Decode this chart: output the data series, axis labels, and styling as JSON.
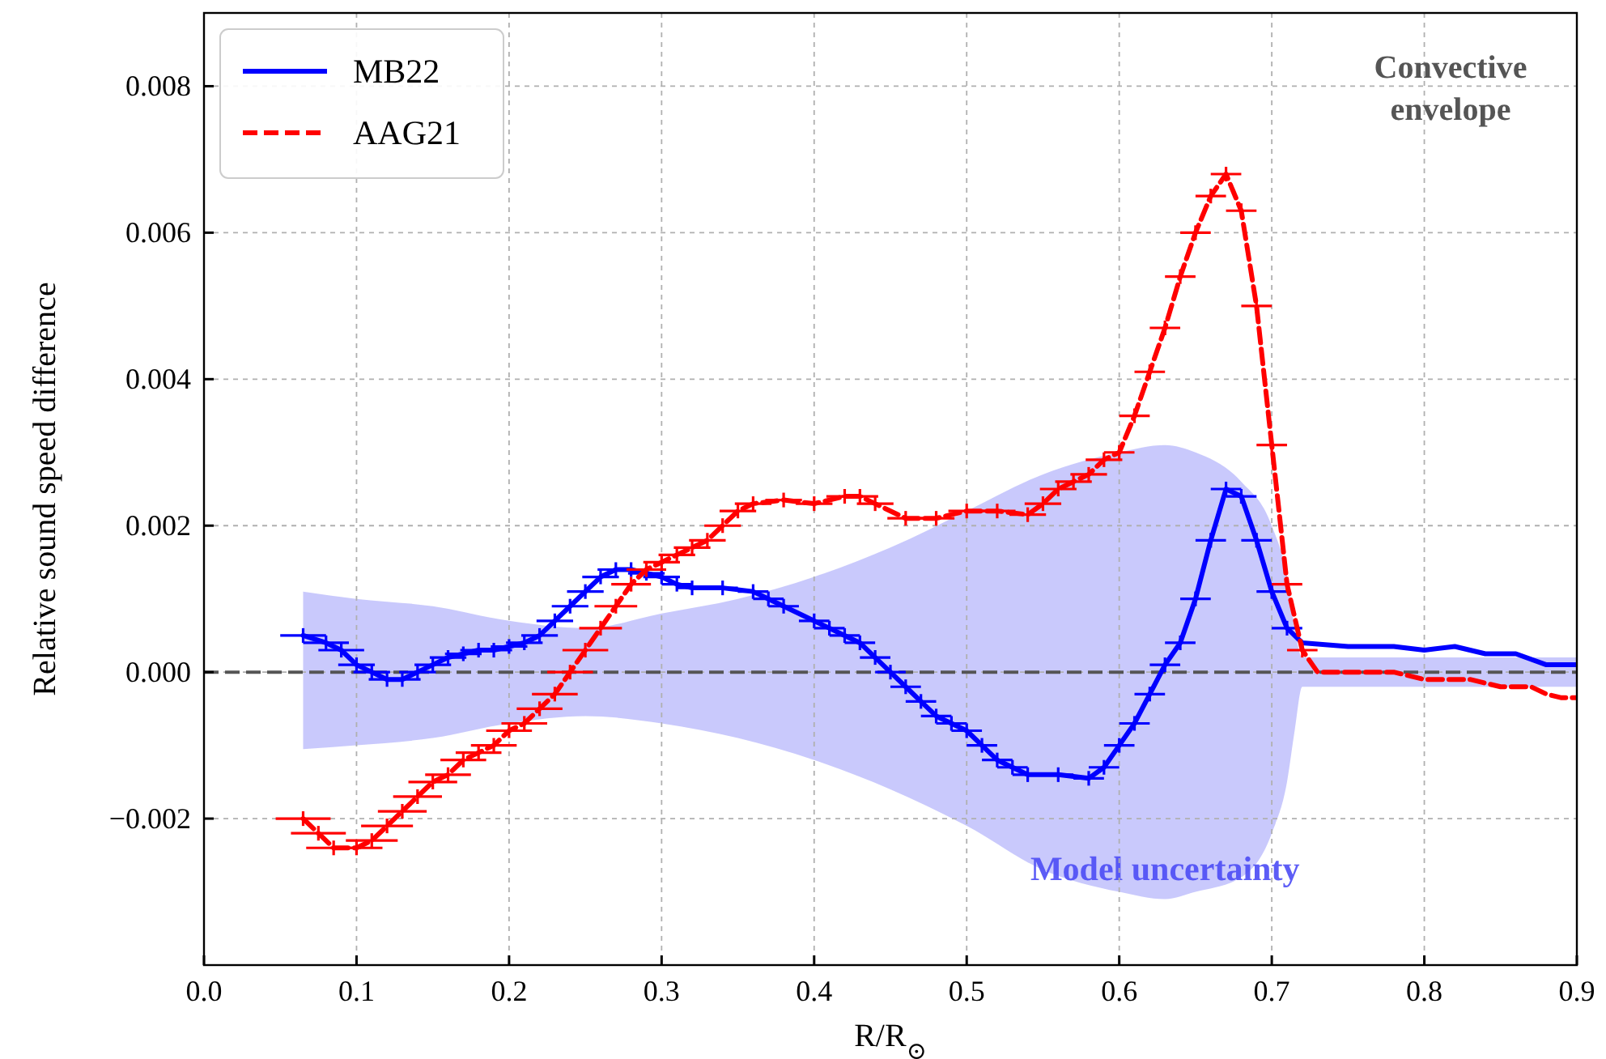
{
  "chart_data": {
    "type": "line",
    "xlabel": "R/R$_{⊙}$",
    "ylabel": "Relative sound speed difference",
    "xlim": [
      0,
      0.9
    ],
    "ylim": [
      -0.004,
      0.009
    ],
    "xticks": [
      {
        "value": 0,
        "label": "0.0"
      },
      0.1,
      0.2,
      0.3,
      0.4,
      0.5,
      0.6,
      0.7,
      0.8,
      0.9
    ],
    "yticks": [
      {
        "value": -0.002,
        "label": "−0.002"
      },
      {
        "value": 0,
        "label": "0.000"
      },
      {
        "value": 0.002,
        "label": "0.002"
      },
      {
        "value": 0.004,
        "label": "0.004"
      },
      {
        "value": 0.006,
        "label": "0.006"
      },
      {
        "value": 0.008,
        "label": "0.008"
      }
    ],
    "grid": true,
    "legend": "top left",
    "ref_lines": [
      {
        "axis": "y",
        "value": 0,
        "color": "#555555",
        "line_style": "dashed"
      }
    ],
    "annotations": [
      "Convective envelope"
    ],
    "series": [
      {
        "name": "Model uncertainty",
        "type": "area",
        "color": "#4b4bf5",
        "x": [
          0.065,
          0.1,
          0.15,
          0.2,
          0.25,
          0.3,
          0.35,
          0.4,
          0.45,
          0.5,
          0.55,
          0.6,
          0.63,
          0.65,
          0.68,
          0.7,
          0.71,
          0.715,
          0.72,
          0.8,
          0.9
        ],
        "values": [
          null,
          null,
          null,
          null,
          null,
          null,
          null,
          null,
          null,
          null,
          null,
          null,
          null,
          null,
          null,
          null,
          null,
          null,
          null,
          null,
          null
        ],
        "upper": [
          0.0011,
          0.001,
          0.0009,
          0.0007,
          0.0006,
          0.0008,
          0.001,
          0.0013,
          0.0017,
          0.0022,
          0.0027,
          0.003,
          0.0031,
          0.003,
          0.0026,
          0.002,
          0.0013,
          0.0006,
          0.0002,
          0.0002,
          0.0002
        ],
        "lower": [
          -0.00105,
          -0.001,
          -0.0009,
          -0.0007,
          -0.0006,
          -0.0007,
          -0.0009,
          -0.0012,
          -0.0016,
          -0.0021,
          -0.0027,
          -0.003,
          -0.0031,
          -0.003,
          -0.0028,
          -0.0022,
          -0.0015,
          -0.0008,
          -0.0002,
          -0.0002,
          -0.0002
        ]
      },
      {
        "name": "MB22",
        "color": "#0000ff",
        "line_style": "solid",
        "x": [
          0.065,
          0.08,
          0.09,
          0.1,
          0.11,
          0.12,
          0.13,
          0.14,
          0.15,
          0.16,
          0.17,
          0.18,
          0.19,
          0.2,
          0.21,
          0.22,
          0.23,
          0.24,
          0.25,
          0.26,
          0.27,
          0.28,
          0.29,
          0.3,
          0.31,
          0.32,
          0.34,
          0.36,
          0.37,
          0.38,
          0.4,
          0.41,
          0.42,
          0.43,
          0.44,
          0.45,
          0.46,
          0.47,
          0.48,
          0.49,
          0.5,
          0.51,
          0.52,
          0.53,
          0.54,
          0.56,
          0.58,
          0.59,
          0.6,
          0.61,
          0.62,
          0.63,
          0.64,
          0.65,
          0.66,
          0.67,
          0.68,
          0.69,
          0.7,
          0.71,
          0.72,
          0.75,
          0.78,
          0.8,
          0.82,
          0.84,
          0.86,
          0.88,
          0.9
        ],
        "values": [
          0.0005,
          0.0004,
          0.0003,
          0.0001,
          0,
          -0.0001,
          -0.0001,
          0,
          0.0001,
          0.0002,
          0.00025,
          0.0003,
          0.0003,
          0.00035,
          0.0004,
          0.0005,
          0.0007,
          0.0009,
          0.0011,
          0.0013,
          0.0014,
          0.0014,
          0.00135,
          0.0013,
          0.0012,
          0.00115,
          0.00115,
          0.0011,
          0.001,
          0.0009,
          0.0007,
          0.0006,
          0.0005,
          0.0004,
          0.0002,
          0,
          -0.0002,
          -0.0004,
          -0.0006,
          -0.0007,
          -0.0008,
          -0.001,
          -0.0012,
          -0.0013,
          -0.0014,
          -0.0014,
          -0.00145,
          -0.0013,
          -0.001,
          -0.0007,
          -0.0003,
          0.0001,
          0.0004,
          0.001,
          0.0018,
          0.0025,
          0.0024,
          0.0018,
          0.0011,
          0.0006,
          0.0004,
          0.00035,
          0.00035,
          0.0003,
          0.00035,
          0.00025,
          0.00025,
          0.0001,
          0.0001
        ],
        "xerrors": [
          0.015,
          0.015,
          0.015,
          0.012,
          0.012,
          0.012,
          0.012,
          0.012,
          0.012,
          0.012,
          0.012,
          0.012,
          0.012,
          0.012,
          0.012,
          0.012,
          0.012,
          0.012,
          0.012,
          0.012,
          0.012,
          0.012,
          0.012,
          0.012,
          0.01,
          0.01,
          0.01,
          0.01,
          0.01,
          0.01,
          0.01,
          0.01,
          0.01,
          0.01,
          0.01,
          0.01,
          0.01,
          0.01,
          0.01,
          0.01,
          0.01,
          0.01,
          0.01,
          0.01,
          0.01,
          0.01,
          0.01,
          0.01,
          0.01,
          0.01,
          0.01,
          0.01,
          0.01,
          0.01,
          0.01,
          0.01,
          0.01,
          0.01,
          0.01,
          0.01,
          null,
          null,
          null,
          null,
          null,
          null,
          null,
          null,
          null
        ],
        "errors": [
          0.0001,
          0.0001,
          0.0001,
          0.0001,
          0.0001,
          0.0001,
          0.0001,
          0.0001,
          0.0001,
          0.0001,
          0.0001,
          0.0001,
          0.0001,
          0.0001,
          0.0001,
          0.0001,
          0.0001,
          0.0001,
          0.0001,
          0.0001,
          0.0001,
          0.0001,
          0.0001,
          0.0001,
          0.0001,
          0.0001,
          0.0001,
          0.0001,
          0.0001,
          0.0001,
          0.0001,
          0.0001,
          0.0001,
          0.0001,
          0.0001,
          0.0001,
          0.0001,
          0.0001,
          0.0001,
          0.0001,
          0.0001,
          0.0001,
          0.0001,
          0.0001,
          0.0001,
          0.0001,
          0.0001,
          0.0001,
          0.0001,
          0.0001,
          0.0001,
          0.0001,
          0.0001,
          0.0001,
          0.0001,
          0.0001,
          0.0001,
          0.0001,
          0.0001,
          0.0001,
          null,
          null,
          null,
          null,
          null,
          null,
          null,
          null,
          null
        ]
      },
      {
        "name": "AAG21",
        "color": "#ff0000",
        "line_style": "dashed",
        "x": [
          0.065,
          0.075,
          0.085,
          0.1,
          0.11,
          0.12,
          0.13,
          0.14,
          0.15,
          0.16,
          0.17,
          0.18,
          0.19,
          0.2,
          0.21,
          0.22,
          0.23,
          0.24,
          0.25,
          0.26,
          0.27,
          0.28,
          0.29,
          0.3,
          0.31,
          0.32,
          0.33,
          0.34,
          0.35,
          0.36,
          0.38,
          0.4,
          0.42,
          0.43,
          0.44,
          0.46,
          0.48,
          0.5,
          0.52,
          0.54,
          0.55,
          0.56,
          0.57,
          0.58,
          0.59,
          0.6,
          0.61,
          0.62,
          0.63,
          0.64,
          0.65,
          0.66,
          0.67,
          0.68,
          0.69,
          0.7,
          0.71,
          0.72,
          0.73,
          0.75,
          0.78,
          0.8,
          0.83,
          0.85,
          0.87,
          0.88,
          0.89,
          0.9
        ],
        "values": [
          -0.002,
          -0.0022,
          -0.0024,
          -0.0024,
          -0.0023,
          -0.0021,
          -0.0019,
          -0.0017,
          -0.0015,
          -0.0014,
          -0.0012,
          -0.0011,
          -0.001,
          -0.0008,
          -0.0007,
          -0.0005,
          -0.0003,
          0,
          0.0003,
          0.0006,
          0.0009,
          0.0012,
          0.0014,
          0.0015,
          0.0016,
          0.0017,
          0.0018,
          0.002,
          0.0022,
          0.0023,
          0.00235,
          0.0023,
          0.0024,
          0.0024,
          0.0023,
          0.0021,
          0.0021,
          0.0022,
          0.0022,
          0.00215,
          0.0023,
          0.0025,
          0.0026,
          0.0027,
          0.0029,
          0.003,
          0.0035,
          0.0041,
          0.0047,
          0.0054,
          0.006,
          0.0065,
          0.0068,
          0.0063,
          0.005,
          0.0031,
          0.0012,
          0.0003,
          0,
          0,
          0,
          -0.0001,
          -0.0001,
          -0.0002,
          -0.0002,
          -0.0003,
          -0.00035,
          -0.00035
        ],
        "xerrors": [
          0.018,
          0.018,
          0.018,
          0.017,
          0.017,
          0.017,
          0.016,
          0.016,
          0.016,
          0.015,
          0.015,
          0.015,
          0.015,
          0.015,
          0.015,
          0.015,
          0.015,
          0.015,
          0.015,
          0.014,
          0.014,
          0.013,
          0.013,
          0.012,
          0.012,
          0.012,
          0.012,
          0.012,
          0.012,
          0.012,
          0.012,
          0.012,
          0.012,
          0.012,
          0.012,
          0.012,
          0.012,
          0.012,
          0.012,
          0.012,
          0.012,
          0.012,
          0.012,
          0.012,
          0.012,
          0.01,
          0.01,
          0.01,
          0.01,
          0.01,
          0.01,
          0.01,
          0.01,
          0.01,
          0.01,
          0.01,
          0.01,
          0.01,
          null,
          null,
          null,
          null,
          null,
          null,
          null,
          null,
          null,
          null
        ],
        "errors": [
          0.0001,
          0.0001,
          0.0001,
          0.0001,
          0.0001,
          0.0001,
          0.0001,
          0.0001,
          0.0001,
          0.0001,
          0.0001,
          0.0001,
          0.0001,
          0.0001,
          0.0001,
          0.0001,
          0.0001,
          0.0001,
          0.0001,
          0.0001,
          0.0001,
          0.0001,
          0.0001,
          0.0001,
          0.0001,
          0.0001,
          0.0001,
          0.0001,
          0.0001,
          0.0001,
          0.0001,
          0.0001,
          0.0001,
          0.0001,
          0.0001,
          0.0001,
          0.0001,
          0.0001,
          0.0001,
          0.0001,
          0.0001,
          0.0001,
          0.0001,
          0.0001,
          0.0001,
          0.0001,
          0.0001,
          0.0001,
          0.0001,
          0.0001,
          0.0001,
          0.0001,
          0.0001,
          0.0001,
          0.0001,
          0.0001,
          0.0001,
          0.0001,
          null,
          null,
          null,
          null,
          null,
          null,
          null,
          null,
          null,
          null
        ]
      }
    ]
  }
}
